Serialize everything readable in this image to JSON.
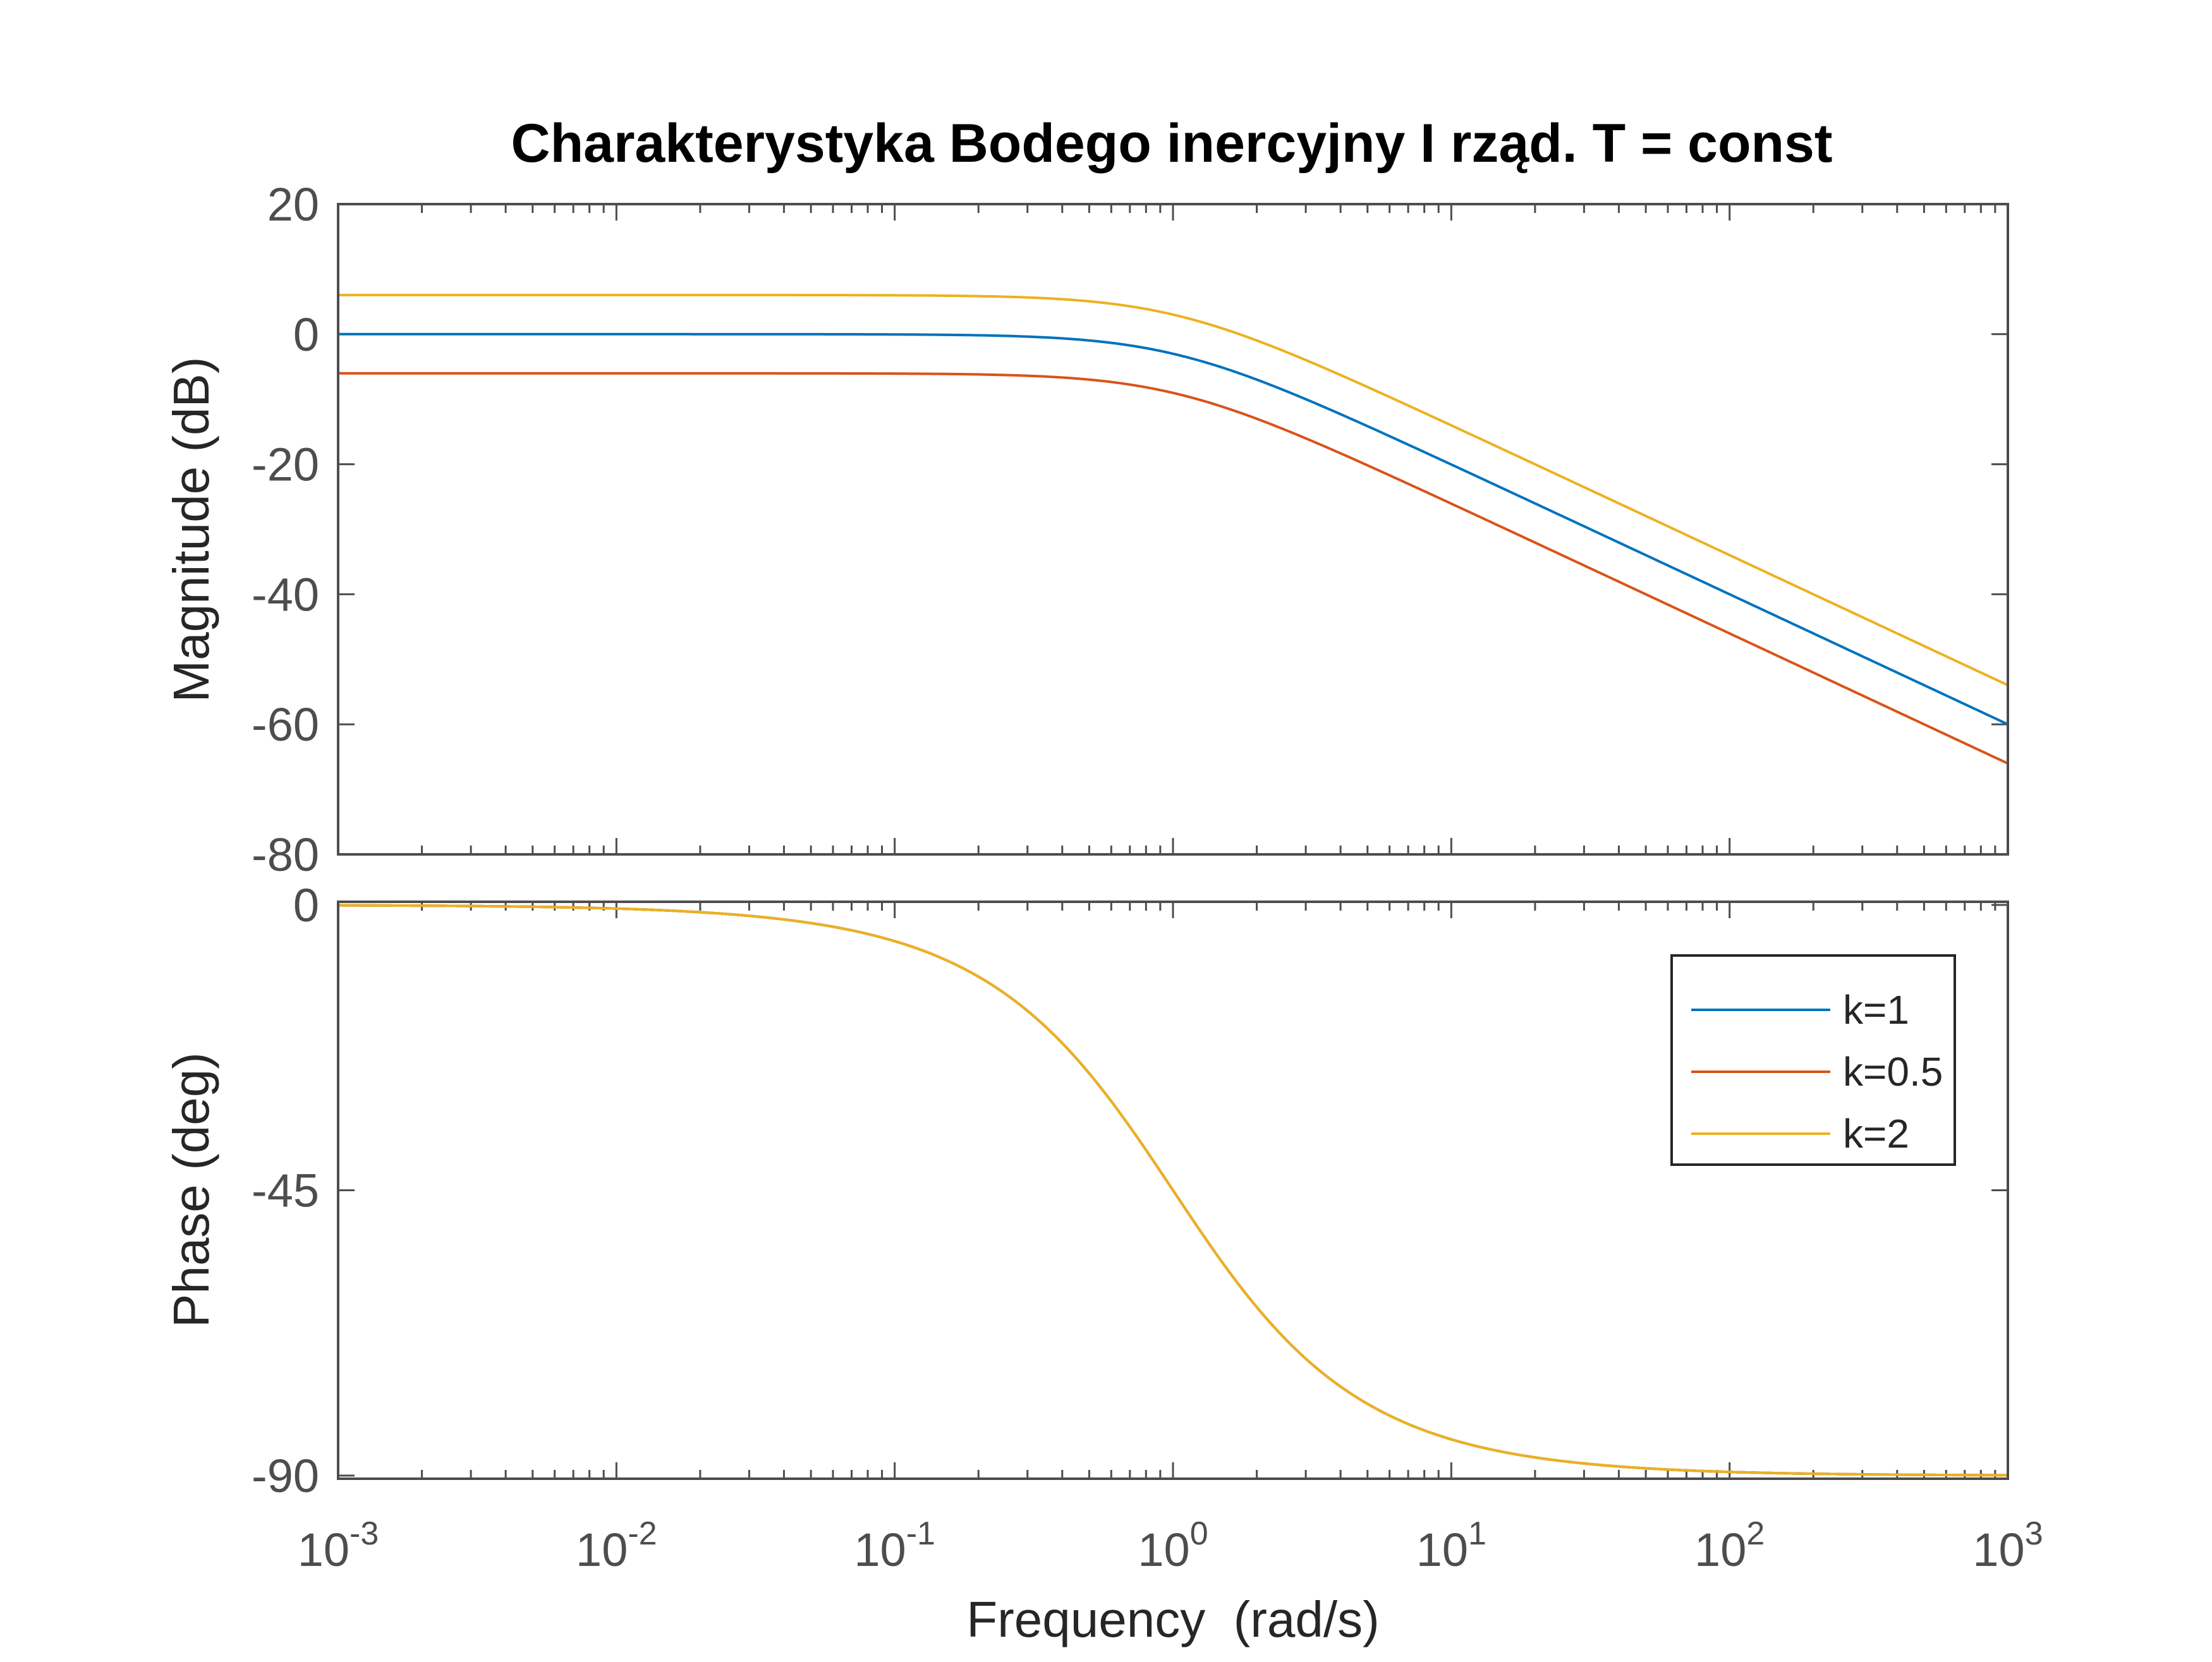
{
  "chart_data": {
    "type": "line",
    "title": "Charakterystyka Bodego inercyjny I rząd. T = const",
    "xlabel": "Frequency  (rad/s)",
    "xscale": "log",
    "xlim": [
      0.001,
      1000
    ],
    "x_ticks": [
      {
        "base": "10",
        "exp": "-3"
      },
      {
        "base": "10",
        "exp": "-2"
      },
      {
        "base": "10",
        "exp": "-1"
      },
      {
        "base": "10",
        "exp": "0"
      },
      {
        "base": "10",
        "exp": "1"
      },
      {
        "base": "10",
        "exp": "2"
      },
      {
        "base": "10",
        "exp": "3"
      }
    ],
    "time_constant": 1,
    "legend": {
      "position": "inside-top-right-of-phase-plot",
      "entries": [
        "k=1",
        "k=0.5",
        "k=2"
      ]
    },
    "colors": {
      "series_1": "#0072BD",
      "series_2": "#D95319",
      "series_3": "#EDB120",
      "axes": "#4d4d4d"
    },
    "grid": false,
    "subplots": [
      {
        "id": "magnitude",
        "ylabel": "Magnitude (dB)",
        "ylim": [
          -80,
          20
        ],
        "yticks": [
          20,
          0,
          -20,
          -40,
          -60,
          -80
        ],
        "ytick_labels": [
          "20",
          "0",
          "-20",
          "-40",
          "-60",
          "-80"
        ],
        "series": [
          {
            "name": "k=1",
            "gain": 1,
            "dc_gain_db": 0,
            "end_value_db": -60
          },
          {
            "name": "k=0.5",
            "gain": 0.5,
            "dc_gain_db": -6.02,
            "end_value_db": -66
          },
          {
            "name": "k=2",
            "gain": 2,
            "dc_gain_db": 6.02,
            "end_value_db": -54
          }
        ]
      },
      {
        "id": "phase",
        "ylabel": "Phase (deg)",
        "ylim": [
          -90.5,
          0.5
        ],
        "yticks": [
          0,
          -45,
          -90
        ],
        "ytick_labels": [
          "0",
          "-45",
          "-90"
        ],
        "series": [
          {
            "name": "k=1",
            "start_value_deg": 0,
            "end_value_deg": -90
          },
          {
            "name": "k=0.5",
            "start_value_deg": 0,
            "end_value_deg": -90
          },
          {
            "name": "k=2",
            "start_value_deg": 0,
            "end_value_deg": -90
          }
        ]
      }
    ]
  }
}
